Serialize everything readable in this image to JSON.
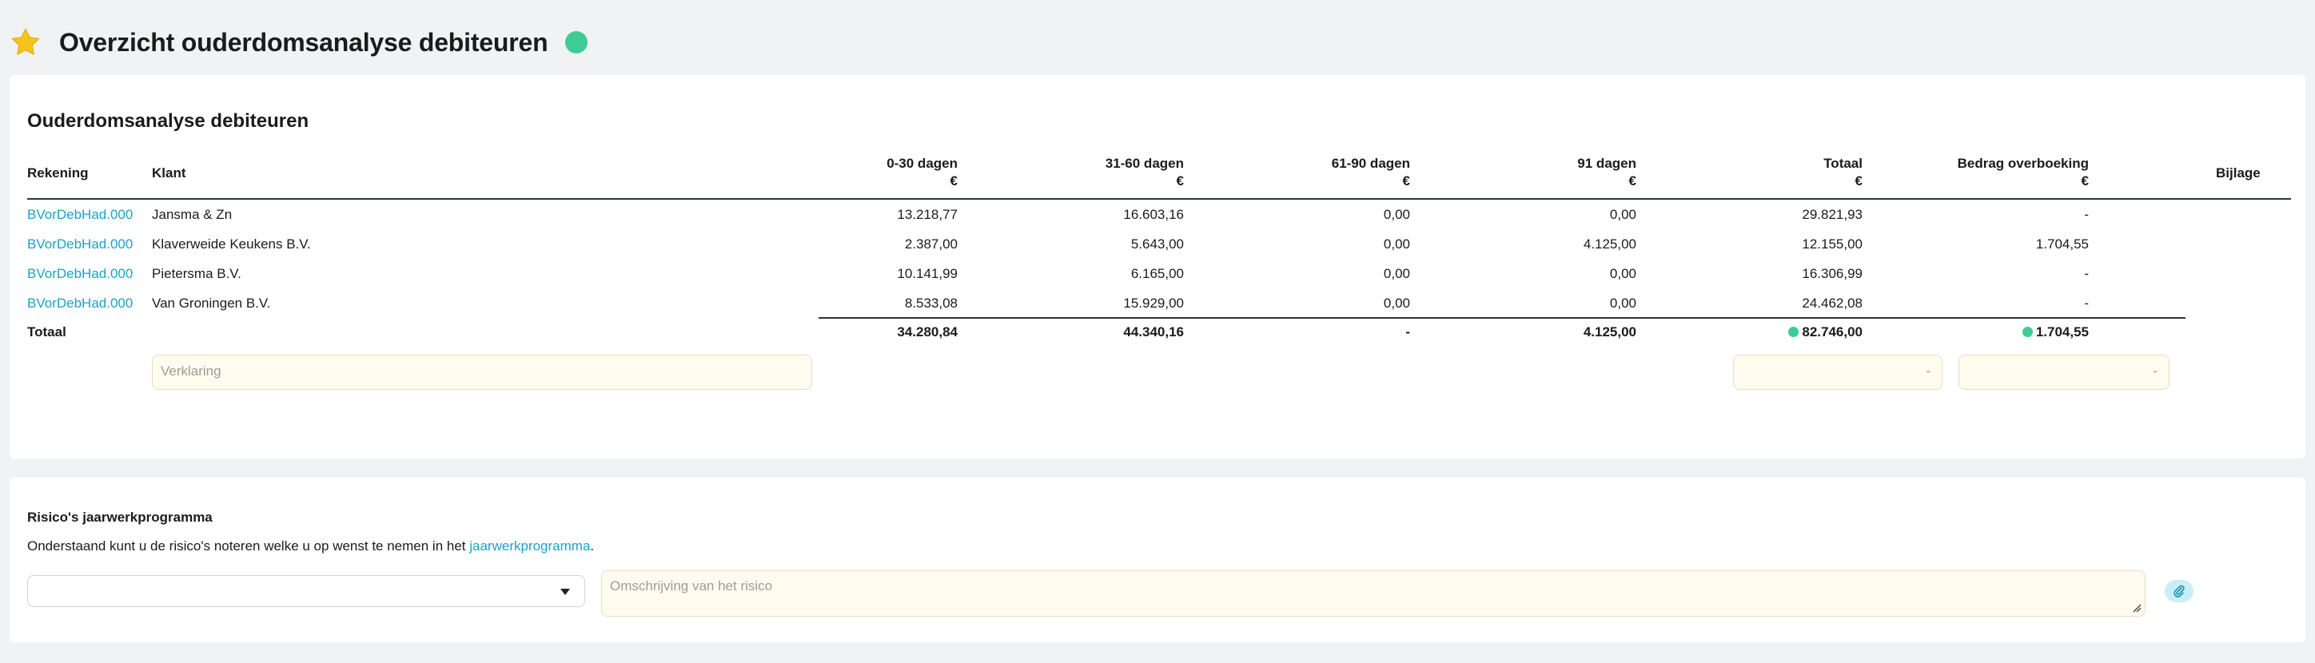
{
  "page": {
    "title": "Overzicht ouderdomsanalyse debiteuren",
    "status_color": "#3ccc94",
    "star_color": "#f6c21c"
  },
  "aging": {
    "title": "Ouderdomsanalyse debiteuren",
    "columns": {
      "account": "Rekening",
      "client": "Klant",
      "b0_30": "0-30 dagen",
      "b31_60": "31-60 dagen",
      "b61_90": "61-90 dagen",
      "b91": "91 dagen",
      "total": "Totaal",
      "transfer": "Bedrag overboeking",
      "attachment": "Bijlage",
      "currency": "€"
    },
    "rows": [
      {
        "account": "BVorDebHad.000",
        "client": "Jansma & Zn",
        "b0_30": "13.218,77",
        "b31_60": "16.603,16",
        "b61_90": "0,00",
        "b91": "0,00",
        "total": "29.821,93",
        "transfer": "-"
      },
      {
        "account": "BVorDebHad.000",
        "client": "Klaverweide Keukens B.V.",
        "b0_30": "2.387,00",
        "b31_60": "5.643,00",
        "b61_90": "0,00",
        "b91": "4.125,00",
        "total": "12.155,00",
        "transfer": "1.704,55"
      },
      {
        "account": "BVorDebHad.000",
        "client": "Pietersma B.V.",
        "b0_30": "10.141,99",
        "b31_60": "6.165,00",
        "b61_90": "0,00",
        "b91": "0,00",
        "total": "16.306,99",
        "transfer": "-"
      },
      {
        "account": "BVorDebHad.000",
        "client": "Van Groningen B.V.",
        "b0_30": "8.533,08",
        "b31_60": "15.929,00",
        "b61_90": "0,00",
        "b91": "0,00",
        "total": "24.462,08",
        "transfer": "-"
      }
    ],
    "totals": {
      "label": "Totaal",
      "b0_30": "34.280,84",
      "b31_60": "44.340,16",
      "b61_90": "-",
      "b91": "4.125,00",
      "total": "82.746,00",
      "transfer": "1.704,55"
    },
    "explanation_placeholder": "Verklaring",
    "total_input_value": "-",
    "transfer_input_value": "-"
  },
  "risks": {
    "title": "Risico's jaarwerkprogramma",
    "text_before": "Onderstaand kunt u de risico's noteren welke u op wenst te nemen in het ",
    "link": "jaarwerkprogramma",
    "text_after": ".",
    "select_value": "",
    "description_placeholder": "Omschrijving van het risico"
  }
}
